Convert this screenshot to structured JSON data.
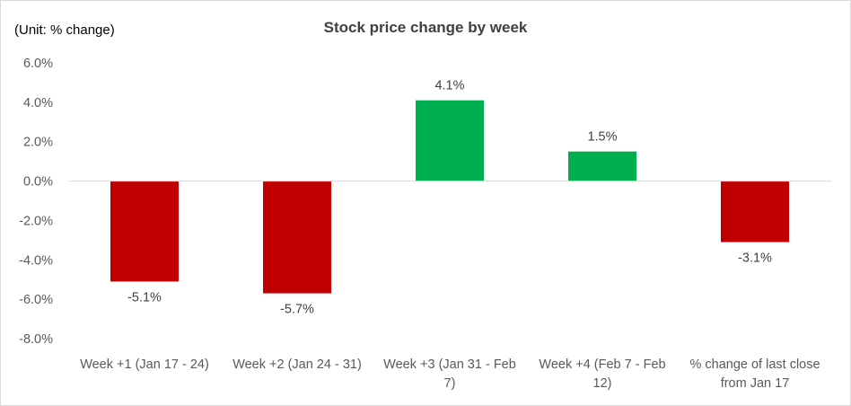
{
  "unit_label": "(Unit: % change)",
  "chart_data": {
    "type": "bar",
    "title": "Stock price change by week",
    "xlabel": "",
    "ylabel": "",
    "categories": [
      [
        "Week +1 (Jan 17 - 24)"
      ],
      [
        "Week +2 (Jan 24 - 31)"
      ],
      [
        "Week +3 (Jan 31 - Feb",
        "7)"
      ],
      [
        "Week +4 (Feb 7 - Feb",
        "12)"
      ],
      [
        "% change of last close",
        "from Jan 17"
      ]
    ],
    "values": [
      -5.1,
      -5.7,
      4.1,
      1.5,
      -3.1
    ],
    "data_labels": [
      "-5.1%",
      "-5.7%",
      "4.1%",
      "1.5%",
      "-3.1%"
    ],
    "bar_colors": [
      "#c00000",
      "#c00000",
      "#00b050",
      "#00b050",
      "#c00000"
    ],
    "ylim": [
      -8,
      6
    ],
    "yticks": [
      6,
      4,
      2,
      0,
      -2,
      -4,
      -6,
      -8
    ],
    "ytick_labels": [
      "6.0%",
      "4.0%",
      "2.0%",
      "0.0%",
      "-2.0%",
      "-4.0%",
      "-6.0%",
      "-8.0%"
    ],
    "grid": false,
    "legend": "none"
  },
  "colors": {
    "negative": "#c00000",
    "positive": "#00b050",
    "axis": "#d9d9d9"
  }
}
